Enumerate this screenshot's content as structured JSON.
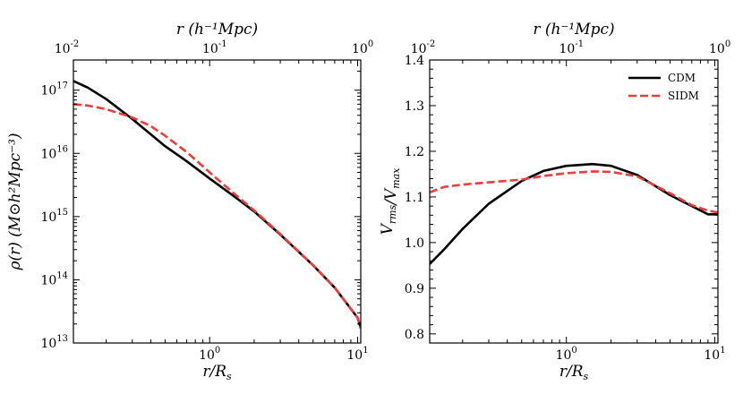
{
  "chart_data": [
    {
      "type": "line",
      "panel": "left",
      "xscale": "log",
      "yscale": "log",
      "xlim": [
        0.12,
        10.5
      ],
      "ylim": [
        10000000000000.0,
        3e+17
      ],
      "xlabel": "r/R_s",
      "ylabel": "ρ(r) (M⊙h²Mpc⁻³)",
      "top_xlabel": "r (h⁻¹Mpc)",
      "x_ticks": [
        {
          "value": 1,
          "label": "10^0"
        },
        {
          "value": 10,
          "label": "10^1"
        }
      ],
      "y_ticks": [
        {
          "value": 10000000000000.0,
          "label": "10^13"
        },
        {
          "value": 100000000000000.0,
          "label": "10^14"
        },
        {
          "value": 1000000000000000.0,
          "label": "10^15"
        },
        {
          "value": 1e+16,
          "label": "10^16"
        },
        {
          "value": 1e+17,
          "label": "10^17"
        }
      ],
      "top_ticks": [
        {
          "value": 0.01,
          "label": "10^-2"
        },
        {
          "value": 0.1,
          "label": "10^-1"
        },
        {
          "value": 1,
          "label": "10^0"
        }
      ],
      "series": [
        {
          "name": "CDM",
          "color": "#000000",
          "style": "solid",
          "x": [
            0.12,
            0.15,
            0.2,
            0.3,
            0.5,
            0.7,
            1.0,
            1.5,
            2.0,
            3.0,
            5.0,
            7.0,
            10.0,
            10.5
          ],
          "y": [
            1.4e+17,
            1.1e+17,
            7.2e+16,
            3.5e+16,
            1.3e+16,
            7500000000000000.0,
            4000000000000000.0,
            2000000000000000.0,
            1200000000000000.0,
            520000000000000.0,
            170000000000000.0,
            75000000000000.0,
            25000000000000.0,
            17000000000000.0
          ]
        },
        {
          "name": "SIDM",
          "color": "#f03b3b",
          "style": "dashed",
          "x": [
            0.12,
            0.15,
            0.2,
            0.3,
            0.4,
            0.5,
            0.7,
            1.0,
            1.5,
            2.0,
            3.0,
            5.0,
            7.0,
            10.0,
            10.5
          ],
          "y": [
            6e+16,
            5.7e+16,
            5e+16,
            3.7e+16,
            2.7e+16,
            1.9e+16,
            1.05e+16,
            5000000000000000.0,
            2200000000000000.0,
            1250000000000000.0,
            530000000000000.0,
            170000000000000.0,
            75000000000000.0,
            25000000000000.0,
            17000000000000.0
          ]
        }
      ]
    },
    {
      "type": "line",
      "panel": "right",
      "xscale": "log",
      "yscale": "linear",
      "xlim": [
        0.12,
        10.5
      ],
      "ylim": [
        0.78,
        1.4
      ],
      "xlabel": "r/R_s",
      "ylabel": "V_rms/V_max",
      "top_xlabel": "r (h⁻¹Mpc)",
      "x_ticks": [
        {
          "value": 1,
          "label": "10^0"
        },
        {
          "value": 10,
          "label": "10^1"
        }
      ],
      "y_ticks": [
        {
          "value": 0.8,
          "label": "0.8"
        },
        {
          "value": 0.9,
          "label": "0.9"
        },
        {
          "value": 1.0,
          "label": "1.0"
        },
        {
          "value": 1.1,
          "label": "1.1"
        },
        {
          "value": 1.2,
          "label": "1.2"
        },
        {
          "value": 1.3,
          "label": "1.3"
        },
        {
          "value": 1.4,
          "label": "1.4"
        }
      ],
      "top_ticks": [
        {
          "value": 0.01,
          "label": "10^-2"
        },
        {
          "value": 0.1,
          "label": "10^-1"
        },
        {
          "value": 1,
          "label": "10^0"
        }
      ],
      "legend": {
        "placement": "top-right",
        "entries": [
          "CDM",
          "SIDM"
        ]
      },
      "series": [
        {
          "name": "CDM",
          "color": "#000000",
          "style": "solid",
          "x": [
            0.12,
            0.15,
            0.2,
            0.3,
            0.5,
            0.7,
            1.0,
            1.5,
            2.0,
            3.0,
            5.0,
            7.0,
            9.0,
            10.5
          ],
          "y": [
            0.953,
            0.985,
            1.03,
            1.085,
            1.135,
            1.157,
            1.168,
            1.172,
            1.168,
            1.148,
            1.104,
            1.08,
            1.062,
            1.062
          ]
        },
        {
          "name": "SIDM",
          "color": "#f03b3b",
          "style": "dashed",
          "x": [
            0.12,
            0.15,
            0.2,
            0.3,
            0.5,
            0.7,
            1.0,
            1.5,
            2.0,
            3.0,
            5.0,
            7.0,
            9.0,
            10.5
          ],
          "y": [
            1.11,
            1.122,
            1.127,
            1.132,
            1.138,
            1.146,
            1.152,
            1.156,
            1.155,
            1.145,
            1.108,
            1.082,
            1.07,
            1.066
          ]
        }
      ]
    }
  ]
}
